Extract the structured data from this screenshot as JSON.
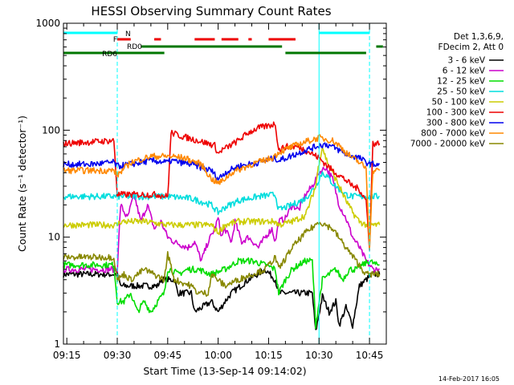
{
  "chart_data": {
    "type": "line",
    "title": "HESSI Observing Summary Count Rates",
    "xlabel": "Start Time (13-Sep-14 09:14:02)",
    "ylabel": "Count Rate (s⁻¹ detector⁻¹)",
    "x_unit": "minutes after 09:14",
    "xlim": [
      0,
      96
    ],
    "ylim": [
      1,
      1000
    ],
    "y_scale": "log",
    "x_ticks": [
      {
        "x": 1,
        "label": "09:15"
      },
      {
        "x": 16,
        "label": "09:30"
      },
      {
        "x": 31,
        "label": "09:45"
      },
      {
        "x": 46,
        "label": "10:00"
      },
      {
        "x": 61,
        "label": "10:15"
      },
      {
        "x": 76,
        "label": "10:30"
      },
      {
        "x": 91,
        "label": "10:45"
      }
    ],
    "y_ticks": [
      {
        "y": 1,
        "label": "1"
      },
      {
        "y": 10,
        "label": "10"
      },
      {
        "y": 100,
        "label": "100"
      },
      {
        "y": 1000,
        "label": "1000"
      }
    ],
    "grid": false,
    "legend_position": "right",
    "legend_header": [
      "Det 1,3,6,9,",
      "FDecim 2, Att 0"
    ],
    "series": [
      {
        "name": "3 - 6 keV",
        "color": "#000000",
        "x": [
          0,
          16,
          17,
          28,
          29,
          33,
          34,
          38,
          39,
          44,
          46,
          48,
          50,
          55,
          60,
          63,
          64,
          74,
          75,
          77,
          79,
          81,
          82,
          84,
          86,
          88,
          90,
          92,
          94
        ],
        "y": [
          4.5,
          4.5,
          3.5,
          3.5,
          4,
          4,
          3,
          3,
          2,
          2.5,
          2,
          2.5,
          3,
          4,
          5,
          4,
          3,
          3,
          1.3,
          2.8,
          2,
          2.5,
          1.5,
          2.2,
          1.5,
          3.5,
          4,
          4.5,
          4.5
        ]
      },
      {
        "name": "6 - 12 keV",
        "color": "#cc00cc",
        "x": [
          0,
          16,
          17,
          19,
          21,
          23,
          25,
          27,
          29,
          31,
          33,
          37,
          39,
          41,
          43,
          45,
          46,
          47,
          48,
          50,
          51,
          53,
          55,
          58,
          60,
          62,
          63,
          64,
          66,
          68,
          70,
          72,
          74,
          76,
          78,
          80,
          82,
          84,
          86,
          88,
          90,
          92,
          94
        ],
        "y": [
          5,
          5,
          20,
          15,
          25,
          14,
          20,
          12,
          14,
          10,
          9,
          8,
          9,
          6,
          9,
          12,
          15,
          10,
          12,
          9,
          14,
          9,
          10,
          8,
          10,
          12,
          9,
          14,
          15,
          20,
          18,
          25,
          30,
          40,
          45,
          35,
          20,
          15,
          10,
          8,
          6,
          5,
          5
        ]
      },
      {
        "name": "12 - 25 keV",
        "color": "#00dd00",
        "x": [
          0,
          15,
          16,
          18,
          20,
          22,
          24,
          26,
          28,
          30,
          31,
          32,
          34,
          37,
          40,
          44,
          48,
          52,
          56,
          60,
          63,
          64,
          66,
          68,
          70,
          72,
          74,
          75,
          77,
          79,
          81,
          83,
          85,
          87,
          89,
          91,
          93,
          94
        ],
        "y": [
          5.5,
          5.5,
          2.5,
          2.5,
          3,
          2,
          2.5,
          2,
          2.5,
          3,
          5,
          5,
          4.5,
          5,
          5,
          4.5,
          5,
          6,
          6,
          5.5,
          5,
          3,
          4,
          5,
          5.5,
          6,
          6,
          1.5,
          4,
          4.5,
          5,
          4,
          5,
          5,
          5.5,
          6,
          5.5,
          5.5
        ]
      },
      {
        "name": "25 - 50 keV",
        "color": "#00dddd",
        "x": [
          0,
          16,
          17,
          24,
          31,
          38,
          44,
          46,
          48,
          52,
          58,
          63,
          64,
          68,
          72,
          75,
          76,
          77,
          78,
          80,
          82,
          84,
          86,
          88,
          90,
          92,
          94
        ],
        "y": [
          24,
          24,
          24,
          24,
          24,
          23,
          20,
          17,
          19,
          22,
          24,
          25,
          18,
          20,
          23,
          30,
          35,
          40,
          38,
          32,
          28,
          25,
          24,
          24,
          24,
          24,
          24
        ]
      },
      {
        "name": "50 - 100 keV",
        "color": "#cccc00",
        "x": [
          0,
          16,
          17,
          24,
          31,
          38,
          44,
          46,
          48,
          52,
          58,
          63,
          64,
          68,
          72,
          75,
          76,
          77,
          78,
          80,
          82,
          84,
          86,
          88,
          90,
          92,
          94
        ],
        "y": [
          13,
          13,
          14,
          14,
          13,
          13,
          13,
          11,
          13,
          14,
          14,
          14,
          13,
          14,
          16,
          30,
          50,
          70,
          55,
          40,
          30,
          22,
          17,
          14,
          13,
          13,
          13
        ]
      },
      {
        "name": "100 - 300 keV",
        "color": "#ee0000",
        "x": [
          0,
          15,
          16,
          18,
          22,
          28,
          31,
          32,
          35,
          40,
          45,
          46,
          47,
          49,
          52,
          55,
          58,
          61,
          63,
          64,
          66,
          70,
          74,
          76,
          78,
          80,
          82,
          84,
          86,
          88,
          90,
          91,
          92,
          94
        ],
        "y": [
          75,
          80,
          25,
          25,
          25,
          25,
          24,
          95,
          88,
          80,
          72,
          60,
          65,
          70,
          80,
          95,
          105,
          110,
          115,
          65,
          70,
          70,
          60,
          55,
          48,
          42,
          38,
          34,
          30,
          28,
          22,
          8,
          75,
          75
        ]
      },
      {
        "name": "300 - 800 keV",
        "color": "#0000ee",
        "x": [
          0,
          8,
          15,
          16,
          20,
          26,
          31,
          32,
          38,
          44,
          46,
          48,
          52,
          58,
          63,
          64,
          68,
          72,
          76,
          78,
          80,
          84,
          88,
          90,
          92,
          94
        ],
        "y": [
          48,
          48,
          50,
          46,
          48,
          52,
          50,
          52,
          48,
          42,
          35,
          40,
          46,
          50,
          55,
          52,
          58,
          65,
          72,
          74,
          70,
          60,
          55,
          50,
          48,
          48
        ]
      },
      {
        "name": "800 - 7000 keV",
        "color": "#ff8800",
        "x": [
          0,
          15,
          16,
          20,
          26,
          32,
          36,
          41,
          44,
          46,
          47,
          50,
          56,
          62,
          64,
          68,
          72,
          76,
          80,
          82,
          84,
          86,
          88,
          90,
          91,
          92,
          94
        ],
        "y": [
          42,
          42,
          38,
          50,
          57,
          57,
          55,
          48,
          35,
          32,
          33,
          40,
          48,
          55,
          62,
          70,
          78,
          85,
          80,
          72,
          62,
          55,
          50,
          44,
          8,
          42,
          42
        ]
      },
      {
        "name": "7000 - 20000 keV",
        "color": "#888800",
        "x": [
          0,
          15,
          16,
          18,
          20,
          24,
          30,
          31,
          33,
          38,
          40,
          43,
          44,
          48,
          52,
          56,
          60,
          63,
          64,
          68,
          72,
          75,
          76,
          78,
          80,
          84,
          87,
          90,
          92,
          94
        ],
        "y": [
          6.5,
          6.5,
          4,
          4.5,
          4,
          5,
          4,
          7,
          4,
          3.5,
          3,
          3,
          4.5,
          3.5,
          4,
          4.5,
          5,
          6.5,
          5,
          8,
          11,
          13,
          14,
          13,
          12,
          8,
          6,
          4.5,
          4.5,
          4.5
        ]
      }
    ],
    "flags": [
      {
        "label": "N",
        "color": "#00ffff",
        "spans": [
          [
            0,
            16
          ],
          [
            76,
            91
          ]
        ]
      },
      {
        "label": "F",
        "color": "#ee0000",
        "spans": [
          [
            16,
            20
          ],
          [
            27,
            29
          ],
          [
            39,
            45
          ],
          [
            47,
            52
          ],
          [
            55,
            56
          ],
          [
            61,
            69
          ]
        ]
      },
      {
        "label": "RD0",
        "color": "#007700",
        "spans": [
          [
            23,
            65
          ],
          [
            93,
            95
          ]
        ]
      },
      {
        "label": "RD6",
        "color": "#007700",
        "spans": [
          [
            0,
            16
          ],
          [
            16,
            30
          ],
          [
            66,
            90
          ]
        ]
      }
    ],
    "vertical_markers": [
      {
        "x": 16,
        "color": "#00ffff",
        "style": "dashed"
      },
      {
        "x": 76,
        "color": "#00ffff",
        "style": "solid"
      },
      {
        "x": 91,
        "color": "#00ffff",
        "style": "dashed"
      }
    ],
    "timestamp": "14-Feb-2017 16:05"
  }
}
